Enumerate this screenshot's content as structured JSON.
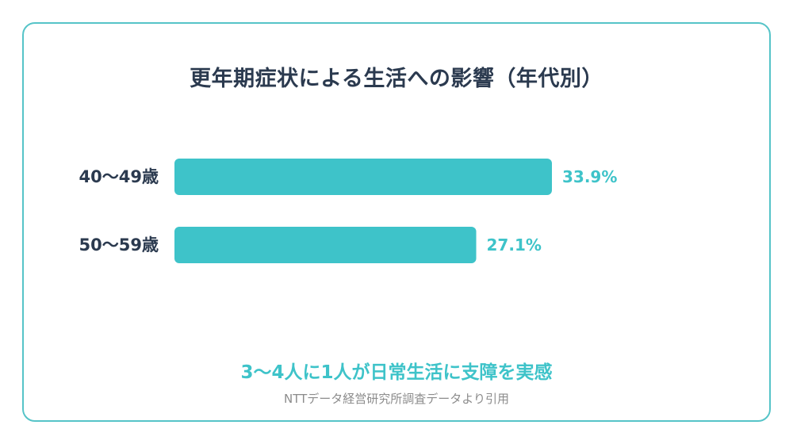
{
  "title": "更年期症状による生活への影響（年代別）",
  "headline": "3〜4人に1人が日常生活に支障を実感",
  "source": "NTTデータ経営研究所調査データより引用",
  "colors": {
    "bar": "#3ec3c9",
    "value_label": "#3ec3c9",
    "category_label": "#2b3a4f",
    "border": "#56c4c8"
  },
  "chart_data": {
    "type": "bar",
    "orientation": "horizontal",
    "categories": [
      "40〜49歳",
      "50〜59歳"
    ],
    "values": [
      33.9,
      27.1
    ],
    "value_labels": [
      "33.9%",
      "27.1%"
    ],
    "title": "更年期症状による生活への影響（年代別）",
    "xlabel": "",
    "ylabel": "",
    "xlim": [
      0,
      33.9
    ],
    "grid": false,
    "legend": "none"
  }
}
